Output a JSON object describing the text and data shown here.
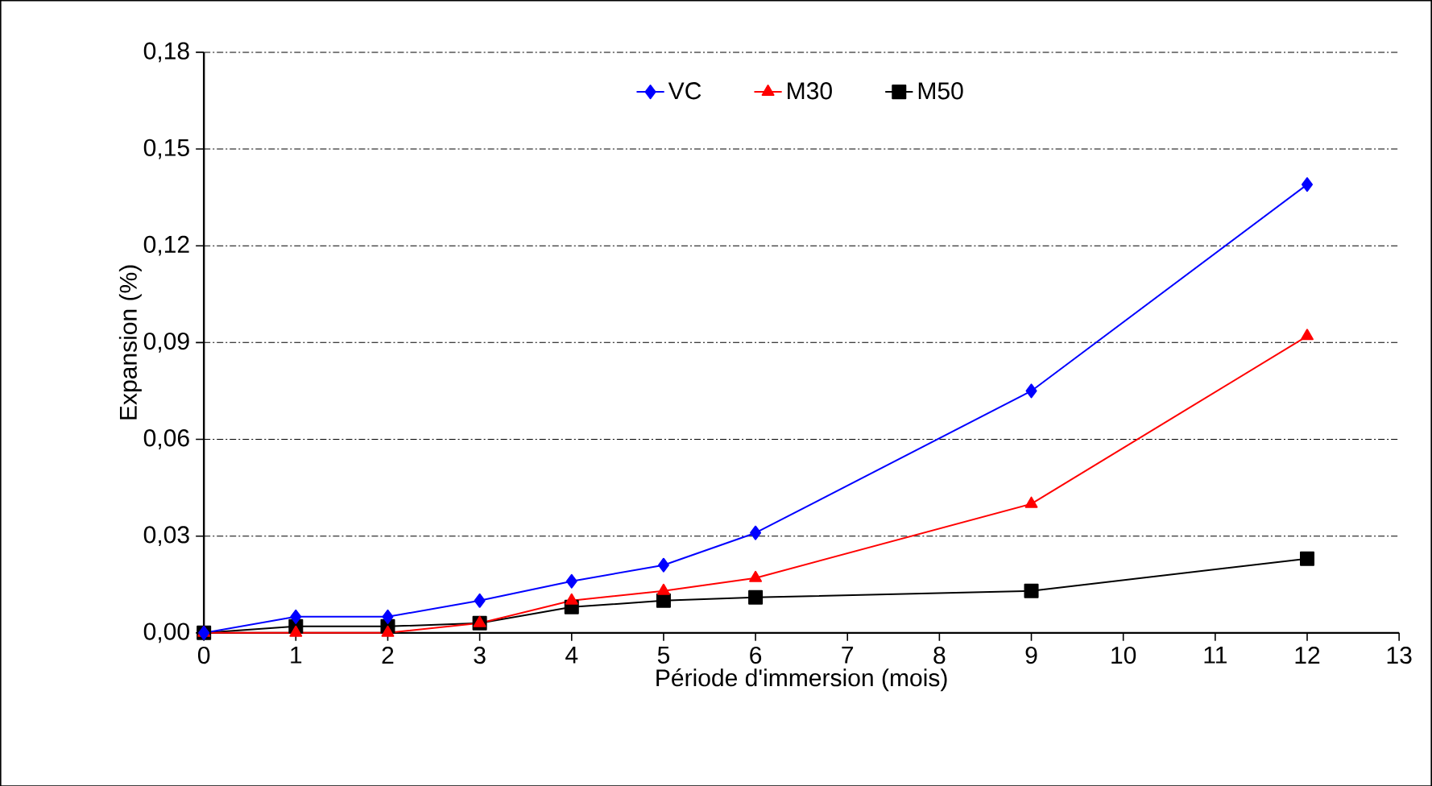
{
  "chart_data": {
    "type": "line",
    "xlabel": "Période d'immersion (mois)",
    "ylabel": "Expansion (%)",
    "x": [
      0,
      1,
      2,
      3,
      4,
      5,
      6,
      9,
      12
    ],
    "series": [
      {
        "name": "VC",
        "color": "#0000ff",
        "marker": "diamond",
        "values": [
          0,
          0.005,
          0.005,
          0.01,
          0.016,
          0.021,
          0.031,
          0.075,
          0.139
        ]
      },
      {
        "name": "M30",
        "color": "#ff0000",
        "marker": "triangle",
        "values": [
          0,
          0,
          0,
          0.003,
          0.01,
          0.013,
          0.017,
          0.04,
          0.092
        ]
      },
      {
        "name": "M50",
        "color": "#000000",
        "marker": "square",
        "values": [
          0,
          0.002,
          0.002,
          0.003,
          0.008,
          0.01,
          0.011,
          0.013,
          0.023
        ]
      }
    ],
    "xlim": [
      0,
      13
    ],
    "xticks": [
      0,
      1,
      2,
      3,
      4,
      5,
      6,
      7,
      8,
      9,
      10,
      11,
      12,
      13
    ],
    "ylim": [
      0,
      0.18
    ],
    "yticks": [
      {
        "value": 0,
        "label": "0,00"
      },
      {
        "value": 0.03,
        "label": "0,03"
      },
      {
        "value": 0.06,
        "label": "0,06"
      },
      {
        "value": 0.09,
        "label": "0,09"
      },
      {
        "value": 0.12,
        "label": "0,12"
      },
      {
        "value": 0.15,
        "label": "0,15"
      },
      {
        "value": 0.18,
        "label": "0,18"
      }
    ],
    "grid": "y",
    "legend": "top",
    "line_style": "solid"
  }
}
